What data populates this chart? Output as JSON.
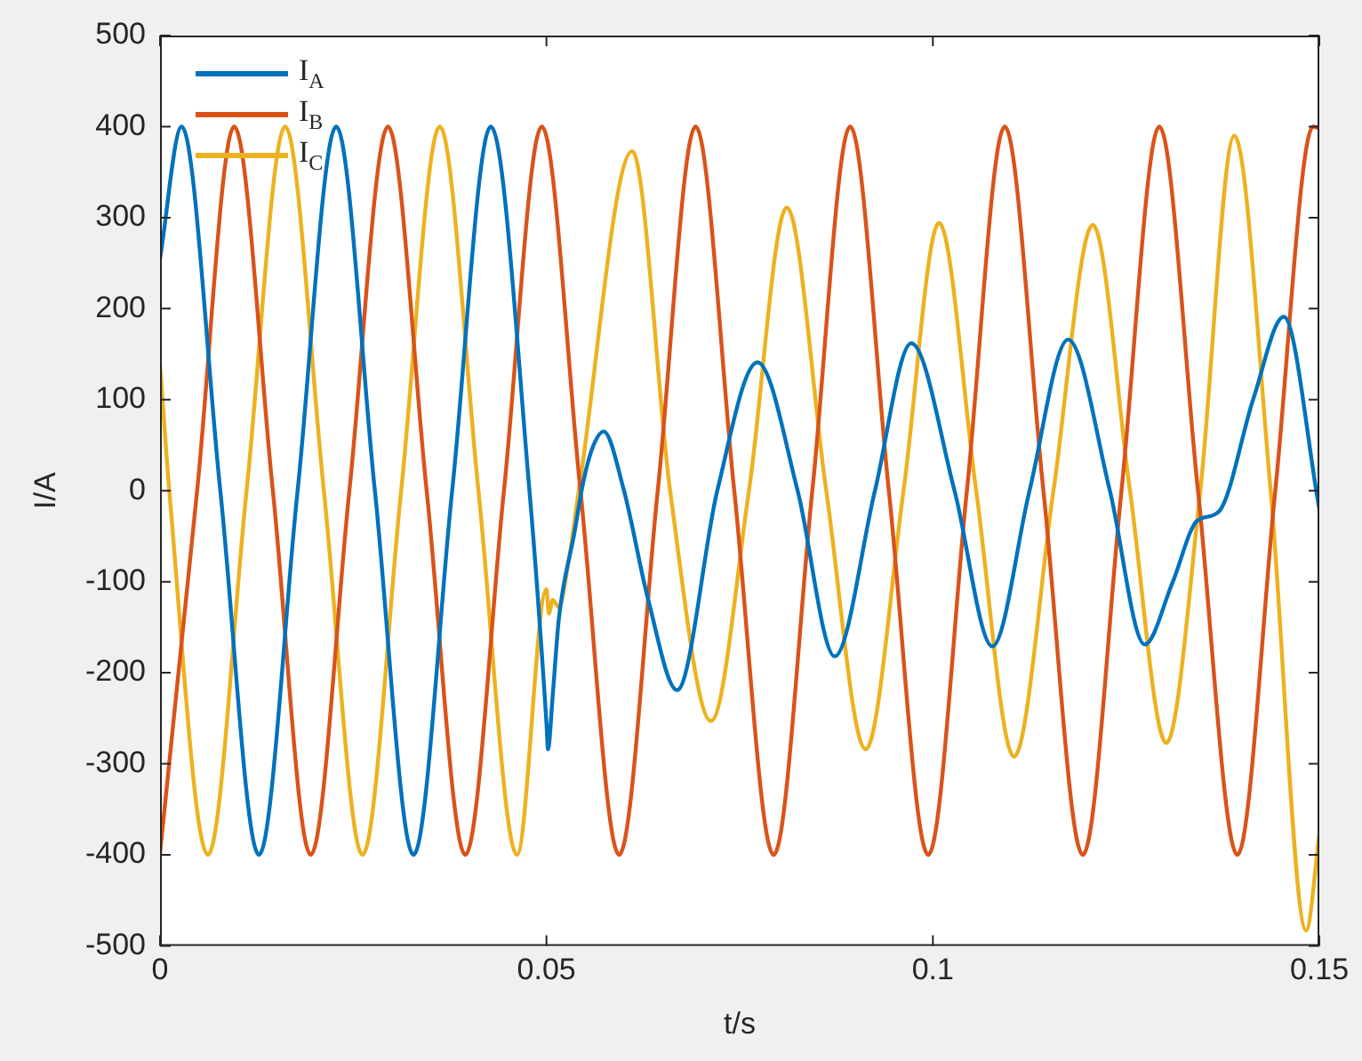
{
  "chart_data": {
    "type": "line",
    "xlabel": "t/s",
    "ylabel": "I/A",
    "xlim": [
      0,
      0.15
    ],
    "xticks": [
      0,
      0.05,
      0.1,
      0.15
    ],
    "ylim": [
      -500,
      500
    ],
    "yticks": [
      -500,
      -400,
      -300,
      -200,
      -100,
      0,
      100,
      200,
      300,
      400,
      500
    ],
    "grid": false,
    "legend": "top left",
    "marker": "none",
    "line_style": "solid",
    "series": [
      {
        "name": "I$_{A}$",
        "color": "#0072bd",
        "x": [
          0,
          0.0028,
          0.0078,
          0.0128,
          0.0178,
          0.0228,
          0.0278,
          0.0328,
          0.0378,
          0.0428,
          0.0478,
          0.05,
          0.0502,
          0.0508,
          0.0516,
          0.0536,
          0.0548,
          0.056,
          0.0574,
          0.06,
          0.0632,
          0.0669,
          0.0721,
          0.0773,
          0.0825,
          0.0873,
          0.0925,
          0.0972,
          0.1028,
          0.1077,
          0.1125,
          0.1175,
          0.1229,
          0.1274,
          0.131,
          0.1342,
          0.137,
          0.1415,
          0.1454,
          0.15
        ],
        "values": [
          255,
          400,
          0,
          -400,
          0,
          400,
          0,
          -400,
          0,
          400,
          0,
          -255,
          -284,
          -226,
          -141,
          -47,
          11,
          48,
          65,
          1,
          -121,
          -219,
          0,
          141,
          0,
          -182,
          0,
          162,
          0,
          -171,
          0,
          166,
          0,
          -169,
          -101,
          -33,
          -23,
          102,
          191,
          -20
        ]
      },
      {
        "name": "I$_{B}$",
        "color": "#d95319",
        "x": [
          0,
          0.0048,
          0.0096,
          0.0146,
          0.0195,
          0.0245,
          0.0295,
          0.0345,
          0.0395,
          0.0445,
          0.0494,
          0.0544,
          0.0594,
          0.0644,
          0.0693,
          0.0743,
          0.0794,
          0.0844,
          0.0893,
          0.0943,
          0.0994,
          0.1044,
          0.1093,
          0.1143,
          0.1194,
          0.1244,
          0.1293,
          0.1343,
          0.1394,
          0.1443,
          0.1492,
          0.15
        ],
        "values": [
          -398,
          0,
          400,
          0,
          -400,
          0,
          400,
          0,
          -400,
          0,
          400,
          0,
          -400,
          0,
          400,
          0,
          -400,
          0,
          400,
          0,
          -400,
          0,
          400,
          0,
          -400,
          0,
          400,
          0,
          -400,
          0,
          400,
          398
        ]
      },
      {
        "name": "I$_{C}$",
        "color": "#edb120",
        "x": [
          0,
          0.0012,
          0.0062,
          0.0112,
          0.0162,
          0.0212,
          0.0262,
          0.0312,
          0.0362,
          0.0412,
          0.0462,
          0.05,
          0.0503,
          0.0508,
          0.0516,
          0.0528,
          0.0543,
          0.0611,
          0.066,
          0.0713,
          0.0762,
          0.0811,
          0.0862,
          0.0913,
          0.0962,
          0.1008,
          0.1056,
          0.1105,
          0.1156,
          0.1207,
          0.1255,
          0.1302,
          0.1346,
          0.139,
          0.1437,
          0.1483,
          0.15
        ],
        "values": [
          139,
          0,
          -400,
          0,
          400,
          0,
          -400,
          0,
          400,
          0,
          -400,
          -108,
          -135,
          -120,
          -128,
          -81,
          7,
          373,
          0,
          -253,
          0,
          311,
          0,
          -284,
          0,
          294,
          0,
          -292,
          0,
          292,
          0,
          -277,
          0,
          390,
          0,
          -483,
          -378
        ]
      }
    ]
  }
}
